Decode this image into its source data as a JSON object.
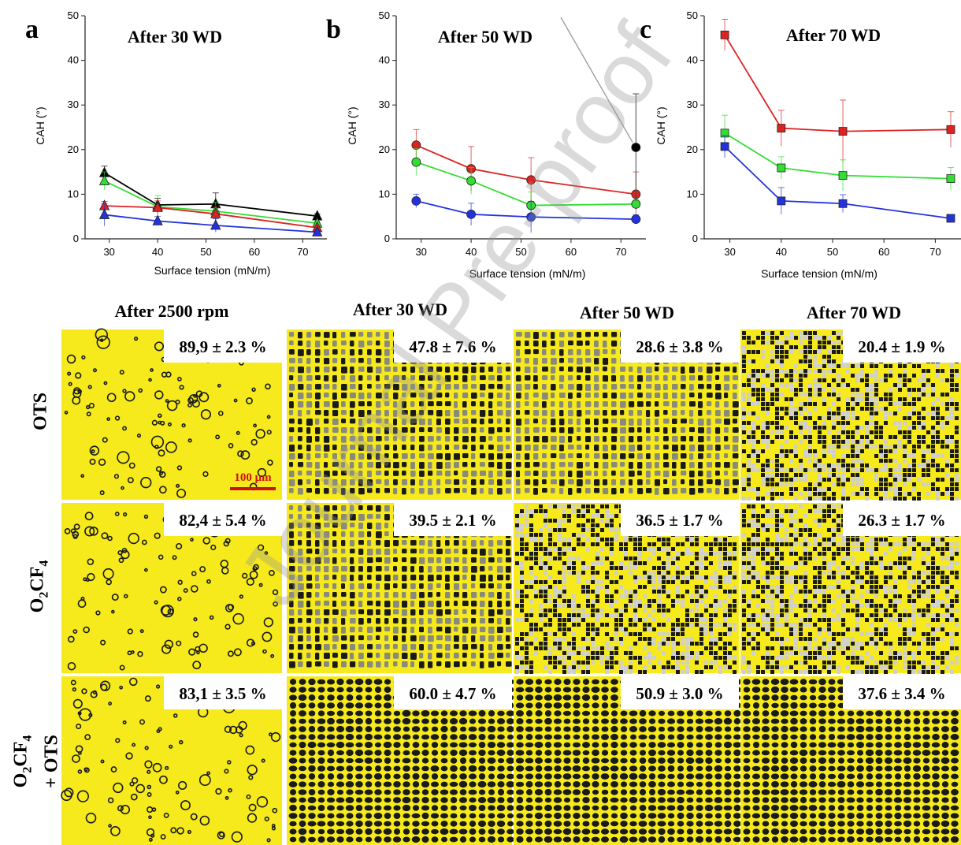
{
  "chart_data": [
    {
      "type": "line",
      "panel_letter": "a",
      "title": "After 30 WD",
      "xlabel": "Surface tension (mN/m)",
      "ylabel": "CAH (°)",
      "xlim": [
        25,
        75
      ],
      "ylim": [
        0,
        50
      ],
      "xticks": [
        30,
        40,
        50,
        60,
        70
      ],
      "yticks": [
        0,
        10,
        20,
        30,
        40,
        50
      ],
      "marker": "triangle",
      "series": [
        {
          "color": "#000000",
          "x": [
            29,
            40,
            52,
            73
          ],
          "y": [
            14.8,
            7.6,
            7.8,
            5.1
          ],
          "err": [
            1.5,
            1.5,
            2.5,
            0.5
          ]
        },
        {
          "color": "#33dd33",
          "x": [
            29,
            40,
            52,
            73
          ],
          "y": [
            13.0,
            7.2,
            6.2,
            3.5
          ],
          "err": [
            2.0,
            2.5,
            2.0,
            0.5
          ]
        },
        {
          "color": "#dd2222",
          "x": [
            29,
            40,
            52,
            73
          ],
          "y": [
            7.4,
            7.0,
            5.6,
            2.5
          ],
          "err": [
            1.0,
            1.5,
            1.5,
            0.5
          ]
        },
        {
          "color": "#2233dd",
          "x": [
            29,
            40,
            52,
            73
          ],
          "y": [
            5.4,
            4.0,
            3.0,
            1.5
          ],
          "err": [
            2.5,
            1.0,
            1.5,
            0.5
          ]
        }
      ]
    },
    {
      "type": "line",
      "panel_letter": "b",
      "title": "After 50 WD",
      "xlabel": "Surface tension (mN/m)",
      "ylabel": "CAH (°)",
      "xlim": [
        25,
        75
      ],
      "ylim": [
        0,
        50
      ],
      "xticks": [
        30,
        40,
        50,
        60,
        70
      ],
      "yticks": [
        0,
        10,
        20,
        30,
        40,
        50
      ],
      "marker": "circle",
      "series": [
        {
          "color": "#dd2222",
          "x": [
            29,
            40,
            52,
            73
          ],
          "y": [
            21.0,
            15.7,
            13.2,
            10.0
          ],
          "err": [
            3.5,
            5.0,
            5.0,
            5.0
          ]
        },
        {
          "color": "#33dd33",
          "x": [
            29,
            40,
            52,
            73
          ],
          "y": [
            17.2,
            13.0,
            7.5,
            7.8
          ],
          "err": [
            3.0,
            3.0,
            3.0,
            1.0
          ]
        },
        {
          "color": "#2233dd",
          "x": [
            29,
            40,
            52,
            73
          ],
          "y": [
            8.5,
            5.5,
            4.9,
            4.4
          ],
          "err": [
            1.5,
            2.5,
            3.5,
            1.0
          ]
        }
      ],
      "extra_points": [
        {
          "color": "#000000",
          "x": 73,
          "y": 20.5,
          "err": 12.0
        }
      ]
    },
    {
      "type": "line",
      "panel_letter": "c",
      "title": "After 70 WD",
      "xlabel": "Surface tension (mN/m)",
      "ylabel": "CAH (°)",
      "xlim": [
        25,
        75
      ],
      "ylim": [
        0,
        50
      ],
      "xticks": [
        30,
        40,
        50,
        60,
        70
      ],
      "yticks": [
        0,
        10,
        20,
        30,
        40,
        50
      ],
      "marker": "square",
      "series": [
        {
          "color": "#dd2222",
          "x": [
            29,
            40,
            52,
            73
          ],
          "y": [
            45.7,
            24.8,
            24.1,
            24.5
          ],
          "err": [
            3.5,
            4.0,
            7.0,
            4.0
          ]
        },
        {
          "color": "#33dd33",
          "x": [
            29,
            40,
            52,
            73
          ],
          "y": [
            23.7,
            15.9,
            14.2,
            13.5
          ],
          "err": [
            4.0,
            2.5,
            3.5,
            2.5
          ]
        },
        {
          "color": "#2233dd",
          "x": [
            29,
            40,
            52,
            73
          ],
          "y": [
            20.7,
            8.5,
            7.9,
            4.6
          ],
          "err": [
            2.5,
            3.0,
            2.0,
            0.8
          ]
        }
      ]
    }
  ],
  "image_grid": {
    "column_headers": [
      "After 2500 rpm",
      "After 30 WD",
      "After 50 WD",
      "After 70 WD"
    ],
    "rows": [
      {
        "label": "OTS",
        "values": [
          "89,9 ± 2.3 %",
          "47.8 ± 7.6 %",
          "28.6 ± 3.8 %",
          "20.4 ± 1.9 %"
        ]
      },
      {
        "label_main": "O",
        "label_sub1": "2",
        "label_mid": "CF",
        "label_sub2": "4",
        "values": [
          "82,4 ± 5.4 %",
          "39.5 ± 2.1 %",
          "36.5 ± 1.7 %",
          "26.3 ± 1.7 %"
        ]
      },
      {
        "label_main": "O",
        "label_sub1": "2",
        "label_mid": "CF",
        "label_sub2": "4",
        "label_line2": "+ OTS",
        "values": [
          "83,1 ± 3.5 %",
          "60.0 ± 4.7 %",
          "50.9 ± 3.0 %",
          "37.6 ± 3.4 %"
        ]
      }
    ],
    "scale_bar": "100 μm"
  },
  "watermark": "Journal Pre-proof",
  "colors": {
    "yellow": "#f6ea1c",
    "dark": "#1a1a1a"
  }
}
